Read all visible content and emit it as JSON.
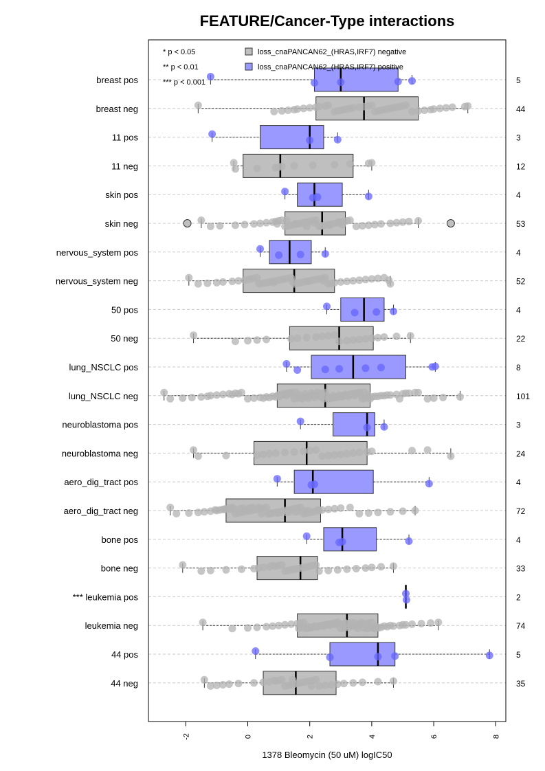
{
  "chart_data": {
    "type": "boxplot",
    "title": "FEATURE/Cancer-Type interactions",
    "xlabel": "1378 Bleomycin (50 uM) logIC50",
    "xlim": [
      -3.2,
      8.3
    ],
    "xticks": [
      -2,
      0,
      2,
      4,
      6,
      8
    ],
    "xtick_labels": [
      "-2",
      "0",
      "2",
      "4",
      "6",
      "8"
    ],
    "grid": "horizontal dashed",
    "legend": {
      "placement": "top",
      "significance": [
        "* p < 0.05",
        "** p < 0.01",
        "*** p < 0.001"
      ],
      "entries": [
        {
          "label": "loss_cnaPANCAN62_(HRAS,IRF7) negative",
          "color": "#bfbfbf"
        },
        {
          "label": "loss_cnaPANCAN62_(HRAS,IRF7) positive",
          "color": "#9999ff"
        }
      ]
    },
    "colors": {
      "negative_box": "#bfbfbf",
      "positive_box": "#9999ff",
      "negative_point": "#b3b3b3",
      "positive_point": "#6666ff"
    },
    "categories": [
      {
        "label": "breast pos",
        "group": "positive",
        "n": "5",
        "min": -1.2,
        "q1": 2.15,
        "median": 3.0,
        "q3": 4.85,
        "max": 5.3,
        "points": [
          -1.2,
          2.15,
          3.0,
          4.85,
          5.3
        ]
      },
      {
        "label": "breast neg",
        "group": "negative",
        "n": "44",
        "min": -1.6,
        "q1": 2.2,
        "median": 3.75,
        "q3": 5.5,
        "max": 7.1,
        "points": [
          -1.6,
          0.85,
          1.1,
          1.3,
          1.5,
          1.6,
          1.8,
          2.0,
          2.2,
          2.3,
          2.5,
          2.6,
          2.8,
          2.9,
          3.0,
          3.1,
          3.2,
          3.3,
          3.4,
          3.6,
          3.75,
          3.9,
          4.0,
          4.1,
          4.2,
          4.3,
          4.4,
          4.5,
          4.6,
          4.7,
          4.8,
          4.9,
          5.0,
          5.1,
          5.3,
          5.5,
          5.7,
          5.9,
          6.0,
          6.2,
          6.4,
          6.6,
          7.0,
          7.1
        ]
      },
      {
        "label": "11 pos",
        "group": "positive",
        "n": "3",
        "min": -1.15,
        "q1": 0.4,
        "median": 2.0,
        "q3": 2.45,
        "max": 2.9,
        "points": [
          -1.15,
          2.0,
          2.9
        ]
      },
      {
        "label": "11 neg",
        "group": "negative",
        "n": "12",
        "min": -0.45,
        "q1": -0.15,
        "median": 1.05,
        "q3": 3.4,
        "max": 4.0,
        "points": [
          -0.45,
          -0.4,
          0.3,
          0.9,
          1.0,
          1.1,
          1.5,
          2.1,
          2.8,
          3.3,
          3.9,
          4.0
        ]
      },
      {
        "label": "skin pos",
        "group": "positive",
        "n": "4",
        "min": 1.2,
        "q1": 1.6,
        "median": 2.15,
        "q3": 3.05,
        "max": 3.9,
        "points": [
          1.2,
          2.1,
          2.25,
          3.9
        ]
      },
      {
        "label": "skin neg",
        "group": "negative",
        "n": "53",
        "min": -1.5,
        "q1": 1.2,
        "median": 2.4,
        "q3": 3.15,
        "max": 5.5,
        "outliers": [
          -1.95,
          6.55
        ],
        "points": [
          -1.5,
          -1.2,
          -0.9,
          -0.4,
          -0.1,
          0.2,
          0.4,
          0.6,
          0.8,
          0.9,
          1.0,
          1.1,
          1.2,
          1.3,
          1.4,
          1.5,
          1.6,
          1.7,
          1.8,
          1.9,
          2.0,
          2.1,
          2.2,
          2.3,
          2.4,
          2.5,
          2.6,
          2.7,
          2.8,
          2.9,
          3.0,
          3.1,
          3.2,
          3.3,
          3.5,
          3.7,
          3.9,
          4.1,
          4.3,
          4.6,
          4.8,
          5.0,
          5.2,
          5.5,
          1.25,
          1.9,
          2.35,
          2.65,
          3.05,
          0.95,
          1.55,
          2.15,
          2.95
        ]
      },
      {
        "label": "nervous_system pos",
        "group": "positive",
        "n": "4",
        "min": 0.4,
        "q1": 0.7,
        "median": 1.35,
        "q3": 2.05,
        "max": 2.5,
        "points": [
          0.4,
          1.0,
          1.7,
          2.5
        ]
      },
      {
        "label": "nervous_system neg",
        "group": "negative",
        "n": "52",
        "min": -1.9,
        "q1": -0.15,
        "median": 1.5,
        "q3": 2.8,
        "max": 4.6,
        "points": [
          -1.9,
          -1.6,
          -1.3,
          -1.0,
          -0.8,
          -0.5,
          -0.3,
          -0.1,
          0.0,
          0.1,
          0.2,
          0.3,
          0.4,
          0.5,
          0.6,
          0.7,
          0.8,
          0.9,
          1.0,
          1.1,
          1.2,
          1.3,
          1.4,
          1.5,
          1.6,
          1.7,
          1.8,
          1.9,
          2.0,
          2.1,
          2.2,
          2.3,
          2.4,
          2.5,
          2.6,
          2.7,
          2.8,
          3.0,
          3.2,
          3.4,
          3.6,
          3.8,
          4.0,
          4.2,
          4.4,
          4.6,
          0.35,
          0.85,
          1.45,
          1.95,
          2.45,
          4.55
        ]
      },
      {
        "label": "50 pos",
        "group": "positive",
        "n": "4",
        "min": 2.55,
        "q1": 3.0,
        "median": 3.75,
        "q3": 4.4,
        "max": 4.7,
        "points": [
          2.55,
          3.45,
          4.15,
          4.7
        ]
      },
      {
        "label": "50 neg",
        "group": "negative",
        "n": "22",
        "min": -1.75,
        "q1": 1.35,
        "median": 2.95,
        "q3": 4.05,
        "max": 5.25,
        "points": [
          -1.75,
          -0.4,
          0.0,
          0.3,
          0.6,
          1.4,
          1.6,
          1.9,
          2.2,
          2.4,
          2.6,
          2.8,
          2.95,
          3.2,
          3.4,
          3.6,
          3.8,
          4.0,
          4.2,
          4.4,
          4.8,
          5.25
        ]
      },
      {
        "label": "lung_NSCLC pos",
        "group": "positive",
        "n": "8",
        "min": 1.25,
        "q1": 2.05,
        "median": 3.4,
        "q3": 5.1,
        "max": 6.05,
        "points": [
          1.25,
          1.6,
          2.5,
          2.95,
          3.8,
          4.3,
          5.95,
          6.05
        ]
      },
      {
        "label": "lung_NSCLC neg",
        "group": "negative",
        "n": "101",
        "min": -2.7,
        "q1": 0.95,
        "median": 2.5,
        "q3": 3.95,
        "max": 6.85,
        "points": [
          -2.7,
          -2.5,
          -2.1,
          -1.8,
          -1.5,
          -1.3,
          -1.2,
          -1.0,
          -0.8,
          -0.6,
          -0.4,
          -0.2,
          0.0,
          0.2,
          0.4,
          0.6,
          0.8,
          0.95,
          1.0,
          1.1,
          1.2,
          1.3,
          1.4,
          1.5,
          1.6,
          1.7,
          1.8,
          1.9,
          2.0,
          2.1,
          2.2,
          2.3,
          2.4,
          2.5,
          2.6,
          2.7,
          2.8,
          2.9,
          3.0,
          3.1,
          3.2,
          3.3,
          3.4,
          3.5,
          3.6,
          3.7,
          3.8,
          3.9,
          4.0,
          4.2,
          4.4,
          4.6,
          4.8,
          5.0,
          5.2,
          5.5,
          5.8,
          6.0,
          6.3,
          6.85,
          1.05,
          1.25,
          1.45,
          1.65,
          1.85,
          2.05,
          2.25,
          2.45,
          2.65,
          2.85,
          3.05,
          3.25,
          3.45,
          3.65,
          3.85,
          1.15,
          1.35,
          1.55,
          1.75,
          1.95,
          2.15,
          2.35,
          2.55,
          2.75,
          2.95,
          3.15,
          3.35,
          3.55,
          3.75,
          3.95,
          0.5,
          0.7,
          0.9,
          4.1,
          4.3,
          4.5,
          -0.5,
          -0.3,
          5.1,
          5.4,
          4.9
        ]
      },
      {
        "label": "neuroblastoma pos",
        "group": "positive",
        "n": "3",
        "min": 1.7,
        "q1": 2.75,
        "median": 3.85,
        "q3": 4.1,
        "max": 4.4,
        "points": [
          1.7,
          3.85,
          4.4
        ]
      },
      {
        "label": "neuroblastoma neg",
        "group": "negative",
        "n": "24",
        "min": -1.75,
        "q1": 0.2,
        "median": 1.9,
        "q3": 3.85,
        "max": 6.55,
        "points": [
          -1.75,
          -1.6,
          -0.7,
          0.3,
          0.5,
          0.7,
          0.9,
          1.2,
          1.5,
          1.8,
          2.0,
          2.2,
          2.4,
          2.6,
          2.8,
          3.0,
          3.2,
          3.4,
          3.6,
          3.85,
          4.0,
          5.3,
          5.8,
          6.55
        ]
      },
      {
        "label": "aero_dig_tract pos",
        "group": "positive",
        "n": "4",
        "min": 0.95,
        "q1": 1.5,
        "median": 2.1,
        "q3": 4.05,
        "max": 5.85,
        "points": [
          0.95,
          2.05,
          2.15,
          5.85
        ]
      },
      {
        "label": "aero_dig_tract neg",
        "group": "negative",
        "n": "72",
        "min": -2.5,
        "q1": -0.7,
        "median": 1.2,
        "q3": 2.35,
        "max": 5.4,
        "points": [
          -2.5,
          -2.3,
          -1.9,
          -1.6,
          -1.4,
          -1.2,
          -1.0,
          -0.9,
          -0.8,
          -0.7,
          -0.6,
          -0.5,
          -0.4,
          -0.3,
          -0.2,
          -0.1,
          0.0,
          0.1,
          0.2,
          0.3,
          0.4,
          0.5,
          0.6,
          0.7,
          0.8,
          0.9,
          1.0,
          1.1,
          1.2,
          1.3,
          1.4,
          1.5,
          1.6,
          1.7,
          1.8,
          1.9,
          2.0,
          2.1,
          2.2,
          2.3,
          2.4,
          2.6,
          2.8,
          3.0,
          3.3,
          3.6,
          3.9,
          4.2,
          4.6,
          5.0,
          5.4,
          -1.05,
          -0.75,
          -0.45,
          -0.15,
          0.15,
          0.45,
          0.75,
          1.05,
          1.35,
          1.65,
          1.95,
          2.25,
          -0.55,
          -0.25,
          0.05,
          0.35,
          0.65,
          0.95,
          1.25,
          1.55,
          1.85
        ]
      },
      {
        "label": "bone pos",
        "group": "positive",
        "n": "4",
        "min": 1.9,
        "q1": 2.45,
        "median": 3.05,
        "q3": 4.15,
        "max": 5.2,
        "points": [
          1.9,
          2.95,
          3.05,
          5.2
        ]
      },
      {
        "label": "bone neg",
        "group": "negative",
        "n": "33",
        "min": -2.1,
        "q1": 0.3,
        "median": 1.7,
        "q3": 2.25,
        "max": 4.7,
        "points": [
          -2.1,
          -1.5,
          -1.2,
          -0.7,
          -0.2,
          0.2,
          0.35,
          0.5,
          0.7,
          0.9,
          1.0,
          1.1,
          1.2,
          1.3,
          1.4,
          1.5,
          1.6,
          1.7,
          1.8,
          1.9,
          2.0,
          2.1,
          2.2,
          2.3,
          2.6,
          2.9,
          3.2,
          3.5,
          3.8,
          4.0,
          4.3,
          4.7,
          0.8
        ]
      },
      {
        "label": "*** leukemia pos",
        "group": "positive",
        "n": "2",
        "min": 5.1,
        "q1": 5.1,
        "median": 5.1,
        "q3": 5.1,
        "max": 5.1,
        "points": [
          5.1,
          5.12
        ]
      },
      {
        "label": "leukemia neg",
        "group": "negative",
        "n": "74",
        "min": -1.45,
        "q1": 1.6,
        "median": 3.2,
        "q3": 4.2,
        "max": 6.15,
        "points": [
          -1.45,
          -0.5,
          0.0,
          0.3,
          0.6,
          0.8,
          1.0,
          1.2,
          1.4,
          1.6,
          1.7,
          1.8,
          1.9,
          2.0,
          2.1,
          2.2,
          2.3,
          2.4,
          2.5,
          2.6,
          2.7,
          2.8,
          2.9,
          3.0,
          3.1,
          3.2,
          3.3,
          3.4,
          3.5,
          3.6,
          3.7,
          3.8,
          3.9,
          4.0,
          4.1,
          4.2,
          4.3,
          4.5,
          4.7,
          4.9,
          5.1,
          5.3,
          5.6,
          5.9,
          6.15,
          1.65,
          1.85,
          2.05,
          2.25,
          2.45,
          2.65,
          2.85,
          3.05,
          3.25,
          3.45,
          3.65,
          3.85,
          4.05,
          1.75,
          1.95,
          2.15,
          2.35,
          2.55,
          2.75,
          2.95,
          3.15,
          3.35,
          3.55,
          3.75,
          3.95,
          4.15,
          4.4,
          4.6,
          5.0
        ]
      },
      {
        "label": "44 pos",
        "group": "positive",
        "n": "5",
        "min": 0.25,
        "q1": 2.65,
        "median": 4.2,
        "q3": 4.75,
        "max": 7.8,
        "points": [
          0.25,
          2.65,
          4.2,
          4.75,
          7.8
        ]
      },
      {
        "label": "44 neg",
        "group": "negative",
        "n": "35",
        "min": -1.4,
        "q1": 0.5,
        "median": 1.55,
        "q3": 2.85,
        "max": 4.7,
        "points": [
          -1.4,
          -1.2,
          -1.0,
          -0.8,
          -0.6,
          -0.3,
          0.2,
          0.5,
          0.7,
          0.9,
          1.0,
          1.1,
          1.2,
          1.3,
          1.4,
          1.5,
          1.6,
          1.7,
          1.8,
          1.9,
          2.0,
          2.1,
          2.2,
          2.3,
          2.5,
          2.7,
          2.9,
          3.1,
          3.4,
          3.7,
          4.2,
          4.7,
          0.85,
          1.45,
          2.05
        ]
      }
    ]
  }
}
